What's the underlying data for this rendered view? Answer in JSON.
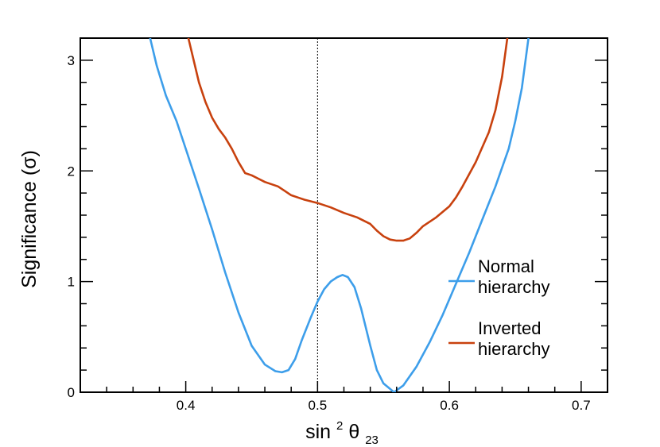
{
  "chart_data": {
    "type": "line",
    "xlim": [
      0.32,
      0.72
    ],
    "ylim": [
      0,
      3.2
    ],
    "xticks": [
      {
        "value": 0.4,
        "label": "0.4"
      },
      {
        "value": 0.5,
        "label": "0.5"
      },
      {
        "value": 0.6,
        "label": "0.6"
      },
      {
        "value": 0.7,
        "label": "0.7"
      }
    ],
    "yticks": [
      {
        "value": 0,
        "label": "0"
      },
      {
        "value": 1,
        "label": "1"
      },
      {
        "value": 2,
        "label": "2"
      },
      {
        "value": 3,
        "label": "3"
      }
    ],
    "xlabel": {
      "base": "sin",
      "sup": "2",
      "theta": "θ",
      "sub": "23"
    },
    "ylabel": "Significance (σ)",
    "reference_line_x": 0.5,
    "grid": false,
    "legend_position": "right",
    "series": [
      {
        "name_lines": [
          "Normal",
          "hierarchy"
        ],
        "color": "#3d9eea",
        "x": [
          0.373,
          0.378,
          0.385,
          0.393,
          0.4,
          0.41,
          0.42,
          0.43,
          0.44,
          0.45,
          0.46,
          0.468,
          0.473,
          0.478,
          0.483,
          0.488,
          0.495,
          0.5,
          0.505,
          0.51,
          0.515,
          0.519,
          0.523,
          0.528,
          0.533,
          0.54,
          0.545,
          0.55,
          0.555,
          0.558,
          0.565,
          0.575,
          0.585,
          0.595,
          0.605,
          0.615,
          0.625,
          0.635,
          0.645,
          0.65,
          0.655,
          0.66
        ],
        "y": [
          3.2,
          2.95,
          2.68,
          2.45,
          2.2,
          1.84,
          1.47,
          1.08,
          0.72,
          0.42,
          0.25,
          0.19,
          0.18,
          0.2,
          0.3,
          0.47,
          0.68,
          0.82,
          0.93,
          1.0,
          1.04,
          1.06,
          1.04,
          0.95,
          0.76,
          0.42,
          0.2,
          0.08,
          0.03,
          0.0,
          0.06,
          0.23,
          0.45,
          0.7,
          0.98,
          1.26,
          1.56,
          1.86,
          2.2,
          2.45,
          2.75,
          3.2
        ]
      },
      {
        "name_lines": [
          "Inverted",
          "hierarchy"
        ],
        "color": "#c8410e",
        "x": [
          0.402,
          0.405,
          0.41,
          0.415,
          0.42,
          0.425,
          0.43,
          0.435,
          0.44,
          0.445,
          0.45,
          0.455,
          0.46,
          0.47,
          0.475,
          0.48,
          0.485,
          0.49,
          0.5,
          0.51,
          0.52,
          0.53,
          0.54,
          0.545,
          0.55,
          0.555,
          0.56,
          0.565,
          0.57,
          0.575,
          0.58,
          0.59,
          0.6,
          0.605,
          0.61,
          0.62,
          0.63,
          0.635,
          0.64,
          0.644
        ],
        "y": [
          3.2,
          3.05,
          2.8,
          2.62,
          2.48,
          2.38,
          2.3,
          2.2,
          2.08,
          1.98,
          1.96,
          1.93,
          1.9,
          1.86,
          1.82,
          1.78,
          1.76,
          1.74,
          1.71,
          1.67,
          1.62,
          1.58,
          1.52,
          1.46,
          1.41,
          1.38,
          1.37,
          1.37,
          1.39,
          1.44,
          1.5,
          1.58,
          1.68,
          1.76,
          1.86,
          2.08,
          2.35,
          2.55,
          2.85,
          3.2
        ]
      }
    ]
  }
}
